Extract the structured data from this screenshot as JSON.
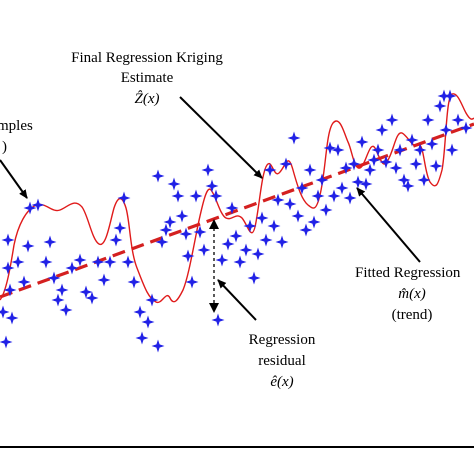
{
  "labels": {
    "kriging_line1": "Final Regression Kriging",
    "kriging_line2": "Estimate",
    "kriging_symbol": "Ẑ(x)",
    "samples_line1": "mples",
    "samples_line2": ")",
    "fitted_line1": "Fitted Regression",
    "fitted_symbol": "m̂(x)",
    "fitted_line3": "(trend)",
    "residual_line1": "Regression",
    "residual_line2": "residual",
    "residual_symbol": "ê(x)"
  },
  "colors": {
    "samples": "#2121e6",
    "kriging_curve": "#e01b1b",
    "trend_line": "#d42020",
    "annotation": "#000000",
    "background": "#ffffff"
  },
  "icons": {
    "sample": "four-point-star"
  }
}
